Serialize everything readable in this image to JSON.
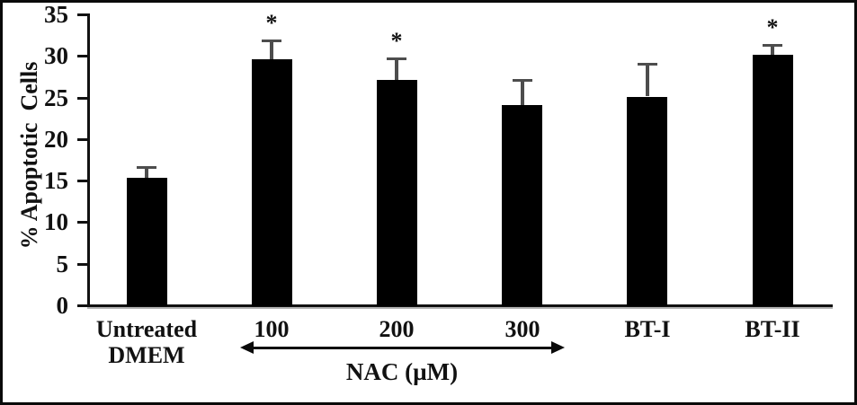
{
  "chart_data": {
    "type": "bar",
    "categories": [
      "Untreated\nDMEM",
      "100",
      "200",
      "300",
      "BT-I",
      "BT-II"
    ],
    "values": [
      15.2,
      29.5,
      27,
      24,
      25,
      30
    ],
    "errors": [
      1.3,
      2.3,
      2.6,
      3.0,
      3.9,
      1.2
    ],
    "significant": [
      false,
      true,
      true,
      false,
      false,
      true
    ],
    "title": "",
    "xlabel": "",
    "ylabel": "% Apoptotic  Cells",
    "ylim": [
      0,
      35
    ],
    "yticks": [
      0,
      5,
      10,
      15,
      20,
      25,
      30,
      35
    ],
    "grid": false,
    "legend_position": "none",
    "bar_color": "#000000",
    "error_bar_color": "#4d4d4d",
    "annotations": {
      "sig_marker": "*",
      "arrow": {
        "label": "NAC (µM)",
        "from_category": "100",
        "to_category": "300"
      }
    }
  }
}
